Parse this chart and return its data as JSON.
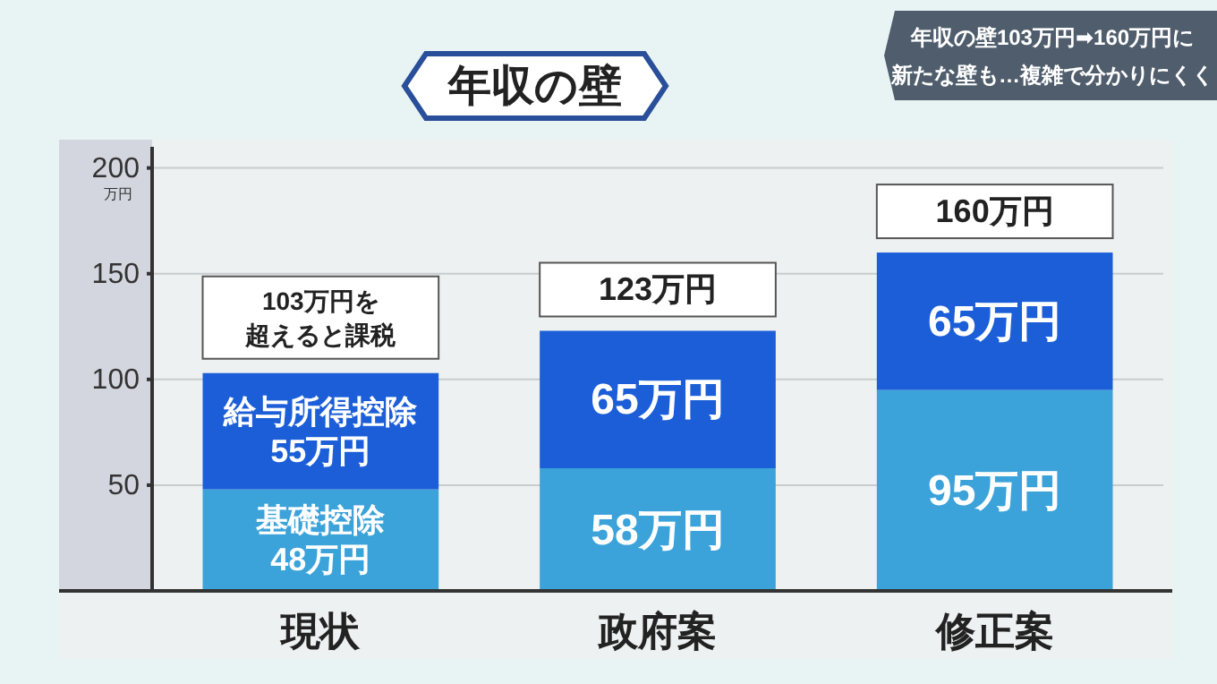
{
  "chart_data": {
    "type": "bar",
    "title": "年収の壁",
    "subtitle": "年収の壁103万円➡160万円に",
    "annotations": [
      "新たな壁も…複雑で分かりにくく"
    ],
    "ylabel": "万円",
    "categories": [
      "現状",
      "政府案",
      "修正案"
    ],
    "stacked": true,
    "series": [
      {
        "color": "#3ba3d9",
        "values": [
          48,
          58,
          95
        ],
        "value_labels": [
          "基礎控除\n48万円",
          "58万円",
          "95万円"
        ]
      },
      {
        "color": "#1b5ed8",
        "values": [
          55,
          65,
          65
        ],
        "value_labels": [
          "給与所得控除\n55万円",
          "65万円",
          "65万円"
        ]
      }
    ],
    "totals": [
      "103万円を超えると課税",
      "123万円",
      "160万円"
    ],
    "ylim": [
      0,
      210
    ],
    "yticks": [
      50,
      100,
      150,
      200
    ],
    "grid": "y"
  }
}
